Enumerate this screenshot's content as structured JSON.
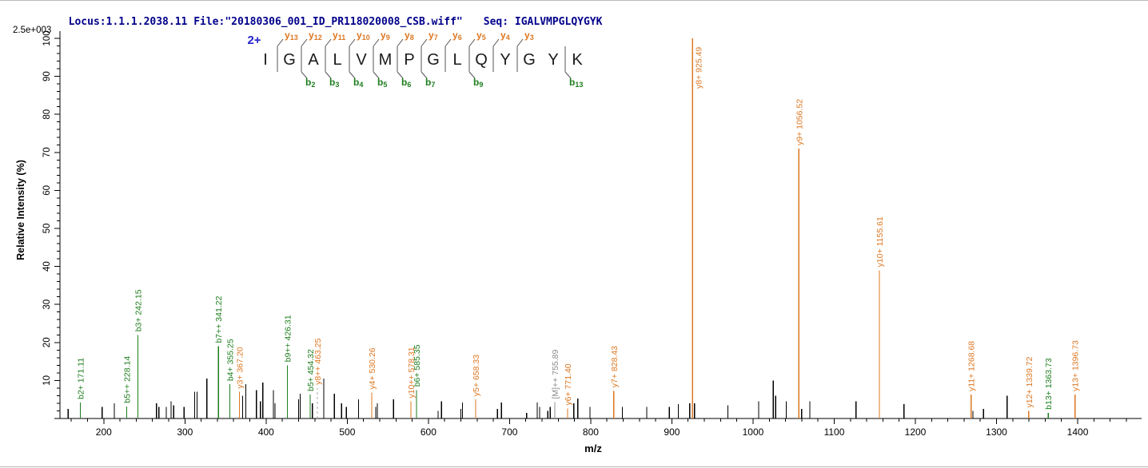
{
  "header": {
    "locus": "Locus:1.1.1.2038.11",
    "file": "File:\"20180306_001_ID_PR118020008_CSB.wiff\"",
    "seq_label": "Seq: IGALVMPGLQYGYK"
  },
  "colors": {
    "y_ion": "#DD7722",
    "b_ion": "#1E7E1E",
    "precursor": "#8C8C8C",
    "peak_black": "#000000",
    "dashed_line": "#AAAAAA",
    "header_text": "#00008B",
    "charge_blue": "#2222CC",
    "axis": "#000000",
    "sequence_letters": "#1A1A1A",
    "fragment_marks": "#555555"
  },
  "chart_data": {
    "type": "bar",
    "subtype": "ms2-fragmentation-spectrum",
    "xlabel": "m/z",
    "ylabel": "Relative  Intensity  (%)",
    "intensity_scale_label": "2.5e+003",
    "xlim": [
      146,
      1464
    ],
    "ylim": [
      0,
      100
    ],
    "x_major_ticks": [
      200,
      300,
      400,
      500,
      600,
      700,
      800,
      900,
      1000,
      1100,
      1200,
      1300,
      1400
    ],
    "x_minor_step": 20,
    "y_major_step": 10,
    "y_minor_step": 2,
    "grid": false,
    "precursor_charge_label": "2+",
    "peptide": {
      "sequence": [
        "I",
        "G",
        "A",
        "L",
        "V",
        "M",
        "P",
        "G",
        "L",
        "Q",
        "Y",
        "G",
        "Y",
        "K"
      ],
      "y_ion_marks": [
        {
          "label": "y",
          "sub": "13",
          "cleavage": 1
        },
        {
          "label": "y",
          "sub": "12",
          "cleavage": 2
        },
        {
          "label": "y",
          "sub": "11",
          "cleavage": 3
        },
        {
          "label": "y",
          "sub": "10",
          "cleavage": 4
        },
        {
          "label": "y",
          "sub": "9",
          "cleavage": 5
        },
        {
          "label": "y",
          "sub": "8",
          "cleavage": 6
        },
        {
          "label": "y",
          "sub": "7",
          "cleavage": 7
        },
        {
          "label": "y",
          "sub": "6",
          "cleavage": 8
        },
        {
          "label": "y",
          "sub": "5",
          "cleavage": 9
        },
        {
          "label": "y",
          "sub": "4",
          "cleavage": 10
        },
        {
          "label": "y",
          "sub": "3",
          "cleavage": 11
        }
      ],
      "b_ion_marks": [
        {
          "label": "b",
          "sub": "2",
          "cleavage": 2
        },
        {
          "label": "b",
          "sub": "3",
          "cleavage": 3
        },
        {
          "label": "b",
          "sub": "4",
          "cleavage": 4
        },
        {
          "label": "b",
          "sub": "5",
          "cleavage": 5
        },
        {
          "label": "b",
          "sub": "6",
          "cleavage": 6
        },
        {
          "label": "b",
          "sub": "7",
          "cleavage": 7
        },
        {
          "label": "b",
          "sub": "9",
          "cleavage": 9
        },
        {
          "label": "b",
          "sub": "13",
          "cleavage": 13
        }
      ]
    },
    "labeled_peaks": [
      {
        "text": "b2+ 171.11",
        "mz": 171.11,
        "intensity": 4.2,
        "type": "b"
      },
      {
        "text": "b5++ 228.14",
        "mz": 228.14,
        "intensity": 3.2,
        "type": "b"
      },
      {
        "text": "b3+ 242.15",
        "mz": 242.15,
        "intensity": 22,
        "type": "b"
      },
      {
        "text": "b7++ 341.22",
        "mz": 341.22,
        "intensity": 19,
        "type": "b"
      },
      {
        "text": "b4+ 355.25",
        "mz": 355.25,
        "intensity": 9,
        "type": "b"
      },
      {
        "text": "y3+ 367.20",
        "mz": 367.2,
        "intensity": 7,
        "type": "y"
      },
      {
        "text": "b9++ 426.31",
        "mz": 426.31,
        "intensity": 14,
        "type": "b"
      },
      {
        "text": "b5+ 454.32",
        "mz": 454.32,
        "intensity": 6.3,
        "type": "b"
      },
      {
        "text": "y8++ 463.25",
        "mz": 463.25,
        "intensity": 8,
        "type": "y",
        "dashed": true
      },
      {
        "text": "y4+ 530.26",
        "mz": 530.26,
        "intensity": 6.8,
        "type": "y"
      },
      {
        "text": "y10++ 578.31",
        "mz": 578.31,
        "intensity": 4.5,
        "type": "y"
      },
      {
        "text": "b6+ 585.35",
        "mz": 585.35,
        "intensity": 7.5,
        "type": "b"
      },
      {
        "text": "y5+ 658.33",
        "mz": 658.33,
        "intensity": 5,
        "type": "y"
      },
      {
        "text": "[M]++ 755.89",
        "mz": 755.89,
        "intensity": 4.3,
        "type": "M"
      },
      {
        "text": "y6+ 771.40",
        "mz": 771.4,
        "intensity": 2.6,
        "type": "y"
      },
      {
        "text": "y7+ 828.43",
        "mz": 828.43,
        "intensity": 7.3,
        "type": "y"
      },
      {
        "text": "y8+ 925.49",
        "mz": 925.49,
        "intensity": 100,
        "type": "y"
      },
      {
        "text": "y9+ 1056.52",
        "mz": 1056.52,
        "intensity": 71,
        "type": "y"
      },
      {
        "text": "y10+ 1155.61",
        "mz": 1155.61,
        "intensity": 39,
        "type": "y"
      },
      {
        "text": "y11+ 1268.68",
        "mz": 1268.68,
        "intensity": 6.3,
        "type": "y"
      },
      {
        "text": "y12+ 1339.72",
        "mz": 1339.72,
        "intensity": 2,
        "type": "y"
      },
      {
        "text": "b13+ 1363.73",
        "mz": 1363.73,
        "intensity": 1.5,
        "type": "b"
      },
      {
        "text": "y13+ 1396.73",
        "mz": 1396.73,
        "intensity": 6.3,
        "type": "y"
      }
    ],
    "unlabeled_peaks": [
      [
        156,
        2.5
      ],
      [
        198,
        3
      ],
      [
        213,
        4
      ],
      [
        265,
        4
      ],
      [
        268,
        3
      ],
      [
        277,
        3
      ],
      [
        283,
        4.5
      ],
      [
        286,
        3.5
      ],
      [
        299,
        3
      ],
      [
        312,
        7
      ],
      [
        315,
        7
      ],
      [
        327,
        10.5
      ],
      [
        371,
        6
      ],
      [
        375,
        9
      ],
      [
        388,
        7.5
      ],
      [
        393,
        4.5
      ],
      [
        396,
        9.5
      ],
      [
        409,
        7.5
      ],
      [
        411,
        4
      ],
      [
        440,
        5
      ],
      [
        442,
        6.5
      ],
      [
        457,
        4
      ],
      [
        471,
        10.5
      ],
      [
        484,
        6.5
      ],
      [
        493,
        4
      ],
      [
        499,
        3
      ],
      [
        514,
        5
      ],
      [
        535,
        3
      ],
      [
        537,
        4
      ],
      [
        557,
        5
      ],
      [
        612,
        2
      ],
      [
        616,
        4.5
      ],
      [
        640,
        2.5
      ],
      [
        642,
        4.2
      ],
      [
        685,
        2.5
      ],
      [
        690,
        4.2
      ],
      [
        721,
        1.5
      ],
      [
        734,
        4.2
      ],
      [
        737,
        3
      ],
      [
        747,
        2
      ],
      [
        750,
        3
      ],
      [
        779,
        4
      ],
      [
        784,
        5.2
      ],
      [
        799,
        3
      ],
      [
        839,
        3
      ],
      [
        869,
        3
      ],
      [
        897,
        3
      ],
      [
        908,
        3.8
      ],
      [
        922,
        4
      ],
      [
        928,
        4
      ],
      [
        969,
        3.5
      ],
      [
        1007,
        4.5
      ],
      [
        1025,
        10
      ],
      [
        1028,
        6
      ],
      [
        1041,
        4.5
      ],
      [
        1060,
        2.5
      ],
      [
        1070,
        4.5
      ],
      [
        1127,
        4.5
      ],
      [
        1186,
        3.8
      ],
      [
        1271,
        2
      ],
      [
        1284,
        2.5
      ],
      [
        1313,
        6
      ]
    ]
  }
}
